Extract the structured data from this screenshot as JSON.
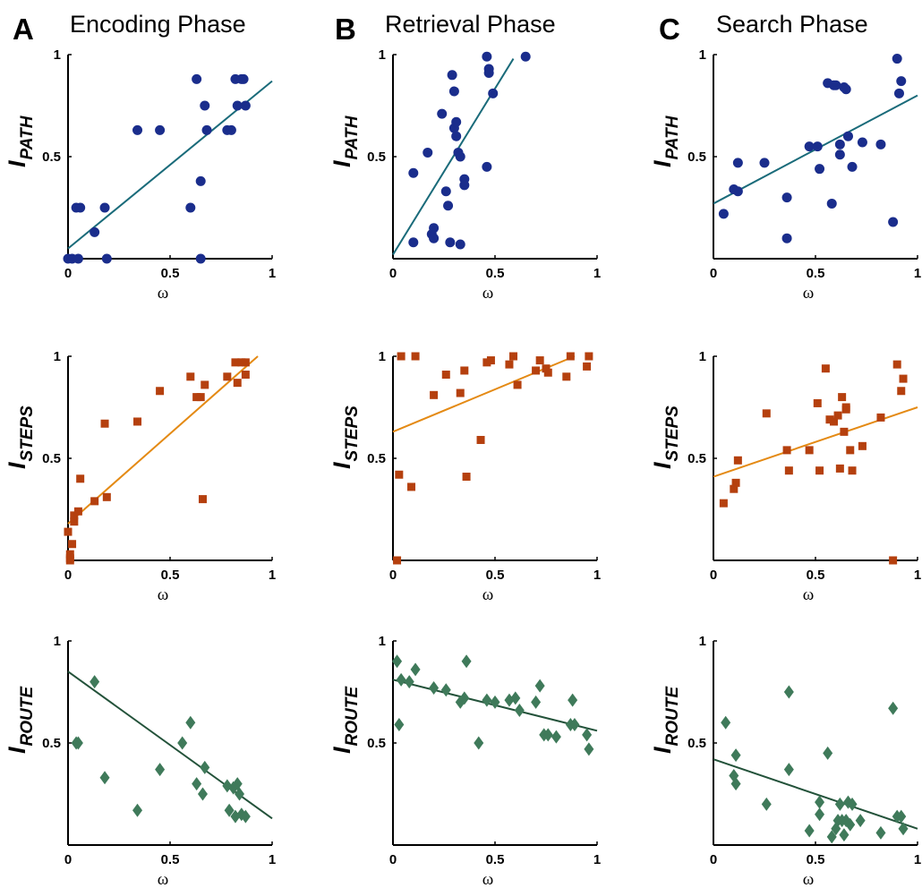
{
  "colors": {
    "path": "#1a2d8c",
    "path_fit": "#1a6b7a",
    "steps": "#b5400e",
    "steps_fit": "#e48a14",
    "route": "#3f7a5a",
    "route_fit": "#23523a"
  },
  "columns": [
    {
      "letter": "A",
      "title": "Encoding Phase"
    },
    {
      "letter": "B",
      "title": "Retrieval Phase"
    },
    {
      "letter": "C",
      "title": "Search Phase"
    }
  ],
  "rows": [
    {
      "ylabel_main": "I",
      "ylabel_sub": "PATH",
      "marker": "circle",
      "color_key": "path"
    },
    {
      "ylabel_main": "I",
      "ylabel_sub": "STEPS",
      "marker": "square",
      "color_key": "steps"
    },
    {
      "ylabel_main": "I",
      "ylabel_sub": "ROUTE",
      "marker": "diamond",
      "color_key": "route"
    }
  ],
  "axes": {
    "xlabel": "ω",
    "xticks": [
      "0",
      "0.5",
      "1"
    ],
    "yticks": [
      "0.5",
      "1"
    ],
    "xlim": [
      0,
      1
    ],
    "ylim": [
      0,
      1
    ]
  },
  "chart_data": [
    {
      "type": "scatter",
      "panel": "A-path",
      "title": "Encoding Phase",
      "xlabel": "ω",
      "ylabel": "I_PATH",
      "x": [
        0.0,
        0.02,
        0.04,
        0.05,
        0.06,
        0.13,
        0.18,
        0.19,
        0.34,
        0.45,
        0.6,
        0.63,
        0.65,
        0.65,
        0.67,
        0.68,
        0.78,
        0.8,
        0.82,
        0.83,
        0.85,
        0.86,
        0.87
      ],
      "y": [
        0.0,
        0.0,
        0.25,
        0.0,
        0.25,
        0.13,
        0.25,
        0.0,
        0.63,
        0.63,
        0.25,
        0.88,
        0.38,
        0.0,
        0.75,
        0.63,
        0.63,
        0.63,
        0.88,
        0.75,
        0.88,
        0.88,
        0.75
      ],
      "fit": [
        [
          0,
          0.05
        ],
        [
          1,
          0.87
        ]
      ]
    },
    {
      "type": "scatter",
      "panel": "B-path",
      "title": "Retrieval Phase",
      "xlabel": "ω",
      "ylabel": "I_PATH",
      "x": [
        0.1,
        0.1,
        0.17,
        0.19,
        0.2,
        0.2,
        0.24,
        0.26,
        0.27,
        0.28,
        0.29,
        0.3,
        0.3,
        0.31,
        0.31,
        0.32,
        0.33,
        0.33,
        0.35,
        0.35,
        0.46,
        0.46,
        0.47,
        0.47,
        0.49,
        0.65
      ],
      "y": [
        0.42,
        0.08,
        0.52,
        0.12,
        0.15,
        0.1,
        0.71,
        0.33,
        0.26,
        0.08,
        0.9,
        0.82,
        0.64,
        0.6,
        0.67,
        0.52,
        0.5,
        0.07,
        0.39,
        0.36,
        0.45,
        0.99,
        0.93,
        0.91,
        0.81,
        0.99
      ],
      "fit": [
        [
          0,
          0.02
        ],
        [
          0.59,
          0.98
        ]
      ]
    },
    {
      "type": "scatter",
      "panel": "C-path",
      "title": "Search Phase",
      "xlabel": "ω",
      "ylabel": "I_PATH",
      "x": [
        0.05,
        0.1,
        0.12,
        0.12,
        0.25,
        0.36,
        0.36,
        0.47,
        0.51,
        0.52,
        0.56,
        0.58,
        0.59,
        0.6,
        0.62,
        0.62,
        0.64,
        0.65,
        0.66,
        0.68,
        0.73,
        0.82,
        0.88,
        0.9,
        0.91,
        0.92
      ],
      "y": [
        0.22,
        0.34,
        0.33,
        0.47,
        0.47,
        0.3,
        0.1,
        0.55,
        0.55,
        0.44,
        0.86,
        0.27,
        0.85,
        0.85,
        0.56,
        0.51,
        0.84,
        0.83,
        0.6,
        0.45,
        0.57,
        0.56,
        0.18,
        0.98,
        0.81,
        0.87
      ],
      "fit": [
        [
          0,
          0.27
        ],
        [
          1,
          0.8
        ]
      ]
    },
    {
      "type": "scatter",
      "panel": "A-steps",
      "title": "Encoding Phase",
      "xlabel": "ω",
      "ylabel": "I_STEPS",
      "x": [
        0.0,
        0.01,
        0.01,
        0.01,
        0.02,
        0.03,
        0.03,
        0.05,
        0.06,
        0.13,
        0.18,
        0.19,
        0.34,
        0.45,
        0.6,
        0.63,
        0.65,
        0.66,
        0.67,
        0.78,
        0.82,
        0.83,
        0.85,
        0.87,
        0.87
      ],
      "y": [
        0.14,
        0.03,
        0.01,
        0.0,
        0.08,
        0.19,
        0.22,
        0.24,
        0.4,
        0.29,
        0.67,
        0.31,
        0.68,
        0.83,
        0.9,
        0.8,
        0.8,
        0.3,
        0.86,
        0.9,
        0.97,
        0.87,
        0.97,
        0.97,
        0.91
      ],
      "fit": [
        [
          0,
          0.18
        ],
        [
          0.93,
          1.0
        ]
      ]
    },
    {
      "type": "scatter",
      "panel": "B-steps",
      "title": "Retrieval Phase",
      "xlabel": "ω",
      "ylabel": "I_STEPS",
      "x": [
        0.02,
        0.03,
        0.04,
        0.09,
        0.11,
        0.2,
        0.26,
        0.33,
        0.35,
        0.36,
        0.43,
        0.46,
        0.48,
        0.57,
        0.59,
        0.61,
        0.7,
        0.72,
        0.75,
        0.76,
        0.85,
        0.87,
        0.95,
        0.96
      ],
      "y": [
        0.0,
        0.42,
        1.0,
        0.36,
        1.0,
        0.81,
        0.91,
        0.82,
        0.93,
        0.41,
        0.59,
        0.97,
        0.98,
        0.96,
        1.0,
        0.86,
        0.93,
        0.98,
        0.94,
        0.92,
        0.9,
        1.0,
        0.95,
        1.0
      ],
      "fit": [
        [
          0,
          0.63
        ],
        [
          0.89,
          1.0
        ]
      ]
    },
    {
      "type": "scatter",
      "panel": "C-steps",
      "title": "Search Phase",
      "xlabel": "ω",
      "ylabel": "I_STEPS",
      "x": [
        0.05,
        0.1,
        0.11,
        0.12,
        0.26,
        0.36,
        0.37,
        0.47,
        0.51,
        0.52,
        0.55,
        0.57,
        0.59,
        0.61,
        0.62,
        0.63,
        0.64,
        0.65,
        0.65,
        0.67,
        0.68,
        0.73,
        0.82,
        0.88,
        0.9,
        0.92,
        0.93
      ],
      "y": [
        0.28,
        0.35,
        0.38,
        0.49,
        0.72,
        0.54,
        0.44,
        0.54,
        0.77,
        0.44,
        0.94,
        0.69,
        0.68,
        0.71,
        0.45,
        0.8,
        0.63,
        0.74,
        0.75,
        0.54,
        0.44,
        0.56,
        0.7,
        0.0,
        0.96,
        0.83,
        0.89
      ],
      "fit": [
        [
          0,
          0.41
        ],
        [
          1,
          0.75
        ]
      ]
    },
    {
      "type": "scatter",
      "panel": "A-route",
      "title": "Encoding Phase",
      "xlabel": "ω",
      "ylabel": "I_ROUTE",
      "x": [
        0.04,
        0.05,
        0.13,
        0.18,
        0.34,
        0.45,
        0.56,
        0.6,
        0.63,
        0.66,
        0.67,
        0.78,
        0.79,
        0.81,
        0.82,
        0.83,
        0.84,
        0.85,
        0.87
      ],
      "y": [
        0.5,
        0.5,
        0.8,
        0.33,
        0.17,
        0.37,
        0.5,
        0.6,
        0.3,
        0.25,
        0.38,
        0.29,
        0.17,
        0.28,
        0.14,
        0.3,
        0.25,
        0.15,
        0.14
      ],
      "fit": [
        [
          0,
          0.85
        ],
        [
          1,
          0.13
        ]
      ]
    },
    {
      "type": "scatter",
      "panel": "B-route",
      "title": "Retrieval Phase",
      "xlabel": "ω",
      "ylabel": "I_ROUTE",
      "x": [
        0.02,
        0.03,
        0.04,
        0.08,
        0.11,
        0.2,
        0.26,
        0.33,
        0.35,
        0.36,
        0.42,
        0.46,
        0.5,
        0.57,
        0.6,
        0.62,
        0.7,
        0.72,
        0.74,
        0.76,
        0.8,
        0.87,
        0.88,
        0.89,
        0.95,
        0.96
      ],
      "y": [
        0.9,
        0.59,
        0.81,
        0.8,
        0.86,
        0.77,
        0.76,
        0.7,
        0.72,
        0.9,
        0.5,
        0.71,
        0.7,
        0.71,
        0.72,
        0.66,
        0.7,
        0.78,
        0.54,
        0.54,
        0.53,
        0.59,
        0.71,
        0.59,
        0.54,
        0.47
      ],
      "fit": [
        [
          0,
          0.81
        ],
        [
          1,
          0.56
        ]
      ]
    },
    {
      "type": "scatter",
      "panel": "C-route",
      "title": "Search Phase",
      "xlabel": "ω",
      "ylabel": "I_ROUTE",
      "x": [
        0.06,
        0.1,
        0.11,
        0.11,
        0.26,
        0.37,
        0.37,
        0.47,
        0.52,
        0.52,
        0.56,
        0.58,
        0.6,
        0.61,
        0.62,
        0.63,
        0.64,
        0.65,
        0.66,
        0.67,
        0.68,
        0.72,
        0.82,
        0.88,
        0.9,
        0.92,
        0.93
      ],
      "y": [
        0.6,
        0.34,
        0.44,
        0.3,
        0.2,
        0.75,
        0.37,
        0.07,
        0.21,
        0.15,
        0.45,
        0.04,
        0.08,
        0.12,
        0.2,
        0.12,
        0.05,
        0.12,
        0.21,
        0.1,
        0.2,
        0.12,
        0.06,
        0.67,
        0.14,
        0.14,
        0.08
      ],
      "fit": [
        [
          0,
          0.42
        ],
        [
          1,
          0.08
        ]
      ]
    }
  ]
}
